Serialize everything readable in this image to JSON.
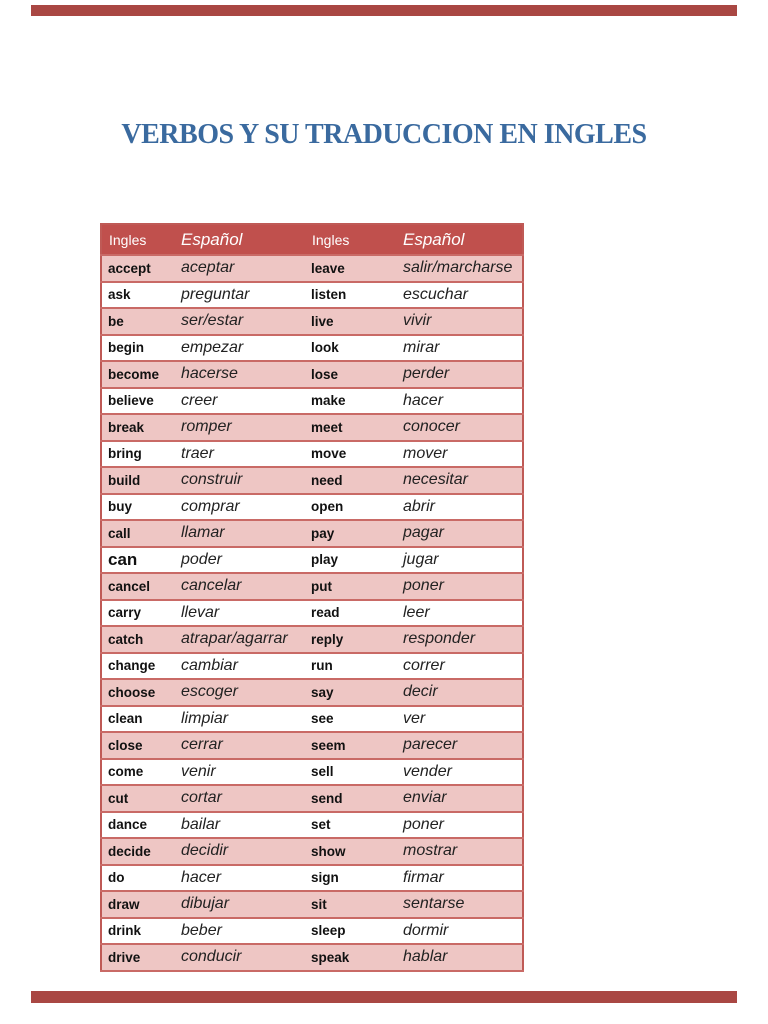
{
  "page": {
    "title": "VERBOS Y SU TRADUCCION EN INGLES"
  },
  "colors": {
    "title_text": "#3a6a9f",
    "table_header_bg": "#c0504d",
    "table_header_text": "#ffffff",
    "row_pink_bg": "#eec6c4",
    "row_white_bg": "#ffffff",
    "table_border": "#c96a66",
    "adjacent_page_edge": "#a94743"
  },
  "table": {
    "headers": [
      "Ingles",
      "Español",
      "Ingles",
      "Español"
    ],
    "large_words": [
      "can"
    ],
    "rows": [
      [
        "accept",
        "aceptar",
        "leave",
        "salir/marcharse"
      ],
      [
        "ask",
        "preguntar",
        "listen",
        "escuchar"
      ],
      [
        "be",
        "ser/estar",
        "live",
        "vivir"
      ],
      [
        "begin",
        "empezar",
        "look",
        "mirar"
      ],
      [
        "become",
        "hacerse",
        "lose",
        "perder"
      ],
      [
        "believe",
        "creer",
        "make",
        "hacer"
      ],
      [
        "break",
        "romper",
        "meet",
        "conocer"
      ],
      [
        "bring",
        "traer",
        "move",
        "mover"
      ],
      [
        "build",
        "construir",
        "need",
        "necesitar"
      ],
      [
        "buy",
        "comprar",
        "open",
        "abrir"
      ],
      [
        "call",
        "llamar",
        "pay",
        "pagar"
      ],
      [
        "can",
        "poder",
        "play",
        "jugar"
      ],
      [
        "cancel",
        "cancelar",
        "put",
        "poner"
      ],
      [
        "carry",
        "llevar",
        "read",
        "leer"
      ],
      [
        "catch",
        "atrapar/agarrar",
        "reply",
        "responder"
      ],
      [
        "change",
        "cambiar",
        "run",
        "correr"
      ],
      [
        "choose",
        "escoger",
        "say",
        "decir"
      ],
      [
        "clean",
        "limpiar",
        "see",
        "ver"
      ],
      [
        "close",
        "cerrar",
        "seem",
        "parecer"
      ],
      [
        "come",
        "venir",
        "sell",
        "vender"
      ],
      [
        "cut",
        "cortar",
        "send",
        "enviar"
      ],
      [
        "dance",
        "bailar",
        "set",
        "poner"
      ],
      [
        "decide",
        "decidir",
        "show",
        "mostrar"
      ],
      [
        "do",
        "hacer",
        "sign",
        "firmar"
      ],
      [
        "draw",
        "dibujar",
        "sit",
        "sentarse"
      ],
      [
        "drink",
        "beber",
        "sleep",
        "dormir"
      ],
      [
        "drive",
        "conducir",
        "speak",
        "hablar"
      ]
    ]
  }
}
